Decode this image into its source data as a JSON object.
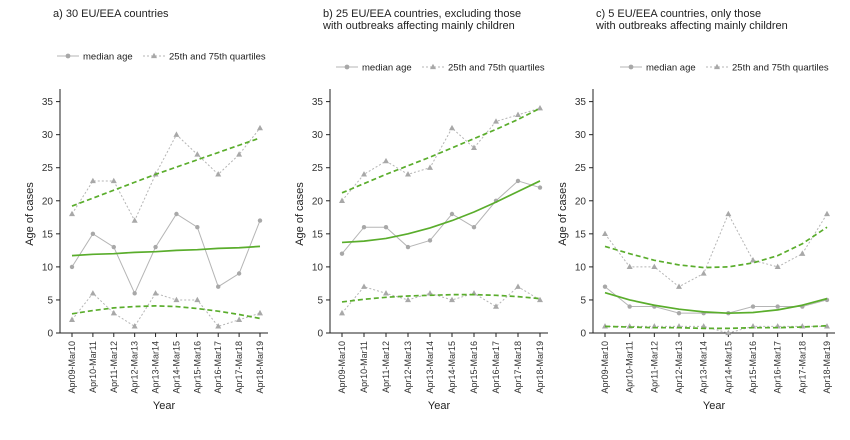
{
  "chart_data": [
    {
      "type": "line",
      "title_lines": [
        "a) 30 EU/EEA countries"
      ],
      "xlabel": "Year",
      "ylabel": "Age of cases",
      "categories": [
        "Apr09-Mar10",
        "Apr10-Mar11",
        "Apr11-Mar12",
        "Apr12-Mar13",
        "Apr13-Mar14",
        "Apr14-Mar15",
        "Apr15-Mar16",
        "Apr16-Mar17",
        "Apr17-Mar18",
        "Apr18-Mar19"
      ],
      "yticks": [
        0,
        5,
        10,
        15,
        20,
        25,
        30,
        35
      ],
      "ylim": [
        0,
        36
      ],
      "legend": {
        "median_label": "median age",
        "quartile_label": "25th and 75th quartiles",
        "placement": "top"
      },
      "series": [
        {
          "name": "median age",
          "role": "median",
          "values": [
            10,
            15,
            13,
            6,
            13,
            18,
            16,
            7,
            9,
            17
          ],
          "trend": [
            11.7,
            11.9,
            12.0,
            12.2,
            12.3,
            12.5,
            12.6,
            12.8,
            12.9,
            13.1
          ]
        },
        {
          "name": "25th and 75th quartiles",
          "role": "q75",
          "values": [
            18,
            23,
            23,
            17,
            24,
            30,
            27,
            24,
            27,
            31
          ],
          "trend": [
            19.2,
            20.4,
            21.6,
            22.8,
            24.0,
            25.1,
            26.2,
            27.3,
            28.4,
            29.5
          ]
        },
        {
          "name": "25th and 75th quartiles",
          "role": "q25",
          "values": [
            2,
            6,
            3,
            1,
            6,
            5,
            5,
            1,
            2,
            3
          ],
          "trend": [
            2.9,
            3.4,
            3.8,
            4.0,
            4.1,
            4.0,
            3.7,
            3.3,
            2.8,
            2.2
          ]
        }
      ]
    },
    {
      "type": "line",
      "title_lines": [
        "b) 25 EU/EEA countries, excluding those",
        "with outbreaks affecting mainly children"
      ],
      "xlabel": "Year",
      "ylabel": "Age of cases",
      "categories": [
        "Apr09-Mar10",
        "Apr10-Mar11",
        "Apr11-Mar12",
        "Apr12-Mar13",
        "Apr13-Mar14",
        "Apr14-Mar15",
        "Apr15-Mar16",
        "Apr16-Mar17",
        "Apr17-Mar18",
        "Apr18-Mar19"
      ],
      "yticks": [
        0,
        5,
        10,
        15,
        20,
        25,
        30,
        35
      ],
      "ylim": [
        0,
        36
      ],
      "legend": {
        "median_label": "median age",
        "quartile_label": "25th and 75th quartiles",
        "placement": "top"
      },
      "series": [
        {
          "name": "median age",
          "role": "median",
          "values": [
            12,
            16,
            16,
            13,
            14,
            18,
            16,
            20,
            23,
            22
          ],
          "trend": [
            13.7,
            13.9,
            14.3,
            15.0,
            15.9,
            17.0,
            18.3,
            19.8,
            21.4,
            23.0
          ]
        },
        {
          "name": "25th and 75th quartiles",
          "role": "q75",
          "values": [
            20,
            24,
            26,
            24,
            25,
            31,
            28,
            32,
            33,
            34
          ],
          "trend": [
            21.2,
            22.6,
            24.0,
            25.3,
            26.6,
            28.0,
            29.4,
            30.8,
            32.3,
            34.0
          ]
        },
        {
          "name": "25th and 75th quartiles",
          "role": "q25",
          "values": [
            3,
            7,
            6,
            5,
            6,
            5,
            6,
            4,
            7,
            5
          ],
          "trend": [
            4.7,
            5.1,
            5.4,
            5.6,
            5.7,
            5.8,
            5.8,
            5.7,
            5.5,
            5.2
          ]
        }
      ]
    },
    {
      "type": "line",
      "title_lines": [
        "c) 5 EU/EEA countries, only those",
        "with outbreaks affecting mainly children"
      ],
      "xlabel": "Year",
      "ylabel": "Age of cases",
      "categories": [
        "Apr09-Mar10",
        "Apr10-Mar11",
        "Apr11-Mar12",
        "Apr12-Mar13",
        "Apr13-Mar14",
        "Apr14-Mar15",
        "Apr15-Mar16",
        "Apr16-Mar17",
        "Apr17-Mar18",
        "Apr18-Mar19"
      ],
      "yticks": [
        0,
        5,
        10,
        15,
        20,
        25,
        30,
        35
      ],
      "ylim": [
        0,
        36
      ],
      "legend": {
        "median_label": "median age",
        "quartile_label": "25th and 75th quartiles",
        "placement": "top"
      },
      "series": [
        {
          "name": "median age",
          "role": "median",
          "values": [
            7,
            4,
            4,
            3,
            3,
            3,
            4,
            4,
            4,
            5
          ],
          "trend": [
            6.1,
            5.0,
            4.2,
            3.6,
            3.2,
            3.0,
            3.1,
            3.5,
            4.2,
            5.2
          ]
        },
        {
          "name": "25th and 75th quartiles",
          "role": "q75",
          "values": [
            15,
            10,
            10,
            7,
            9,
            18,
            11,
            10,
            12,
            18
          ],
          "trend": [
            13.1,
            12.0,
            11.0,
            10.3,
            9.9,
            10.0,
            10.6,
            11.7,
            13.5,
            16.0
          ]
        },
        {
          "name": "25th and 75th quartiles",
          "role": "q25",
          "values": [
            1,
            1,
            1,
            1,
            1,
            0,
            1,
            1,
            1,
            1
          ],
          "trend": [
            1.0,
            0.9,
            0.8,
            0.8,
            0.7,
            0.7,
            0.8,
            0.8,
            0.9,
            1.1
          ]
        }
      ]
    }
  ],
  "colors": {
    "data_line": "#b5b5b5",
    "data_marker": "#a8a8a8",
    "trend": "#5aad2c",
    "axis": "#222222",
    "text": "#222222"
  }
}
